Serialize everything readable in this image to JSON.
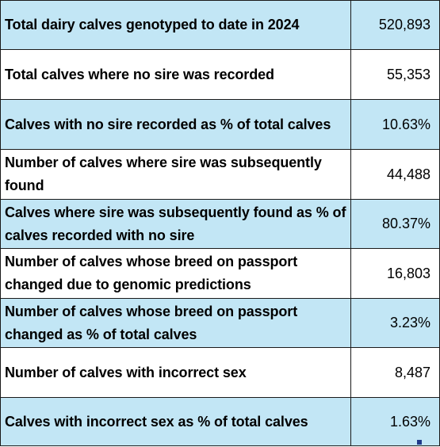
{
  "table": {
    "rows": [
      {
        "label": "Total dairy calves genotyped to date in 2024",
        "value": "520,893"
      },
      {
        "label": "Total calves where no sire was recorded",
        "value": "55,353"
      },
      {
        "label": "Calves with no sire recorded as % of total calves",
        "value": "10.63%"
      },
      {
        "label": "Number of calves where sire was subsequently found",
        "value": "44,488"
      },
      {
        "label": "Calves where sire was subsequently found as % of calves recorded with no sire",
        "value": "80.37%"
      },
      {
        "label": "Number of calves whose breed on passport changed due to genomic predictions",
        "value": "16,803"
      },
      {
        "label": "Number of calves whose breed on passport changed as % of total calves",
        "value": "3.23%"
      },
      {
        "label": "Number of calves with incorrect sex",
        "value": "8,487"
      },
      {
        "label": "Calves with incorrect sex as % of total calves",
        "value": "1.63%"
      }
    ]
  },
  "colors": {
    "shaded_row": "#c2e6f5",
    "plain_row": "#ffffff",
    "border": "#1a1a1a"
  }
}
